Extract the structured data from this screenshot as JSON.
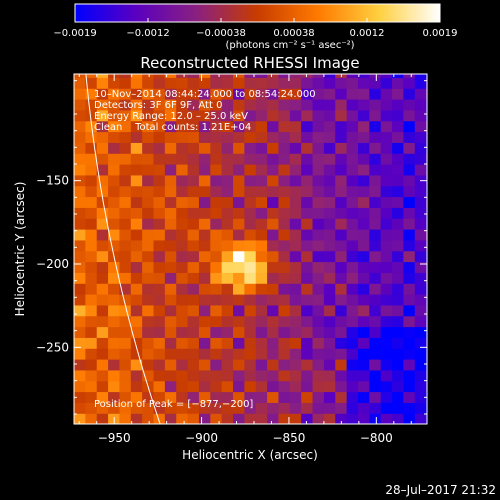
{
  "chart_data": {
    "type": "heatmap",
    "title": "Reconstructed RHESSI Image",
    "xlabel": "Heliocentric X (arcsec)",
    "ylabel": "Heliocentric Y (arcsec)",
    "xlim": [
      -973,
      -771
    ],
    "ylim": [
      -296,
      -86
    ],
    "x_ticks": [
      -950,
      -900,
      -850,
      -800
    ],
    "x_tick_labels": [
      "−950",
      "−900",
      "−850",
      "−800"
    ],
    "y_ticks": [
      -150,
      -200,
      -250
    ],
    "y_tick_labels": [
      "−150",
      "−200",
      "−250"
    ],
    "colorbar": {
      "min": -0.0019,
      "max": 0.0019,
      "tick_labels": [
        "−0.0019",
        "−0.0012",
        "−0.00038",
        "0.00038",
        "0.0012",
        "0.0019"
      ],
      "units_label": "(photons cm⁻² s⁻¹ asec⁻²)",
      "colors": [
        "#0000ff",
        "#5a00c0",
        "#8a2080",
        "#c83c00",
        "#ff7a00",
        "#ffd040",
        "#ffffff"
      ]
    },
    "peak": {
      "x": -877,
      "y": -200
    },
    "info_lines": [
      "10–Nov–2014 08:44:24.000 to 08:54:24.000",
      "Detectors: 3F 6F 9F, Att 0",
      "Energy Range: 12.0 – 25.0 keV",
      "Clean    Total counts: 1.21E+04"
    ],
    "peak_label": "Position of Peak = [−877,−200]",
    "limb_color": "#ffffff"
  },
  "footer": {
    "timestamp": "28–Jul–2017 21:32"
  }
}
